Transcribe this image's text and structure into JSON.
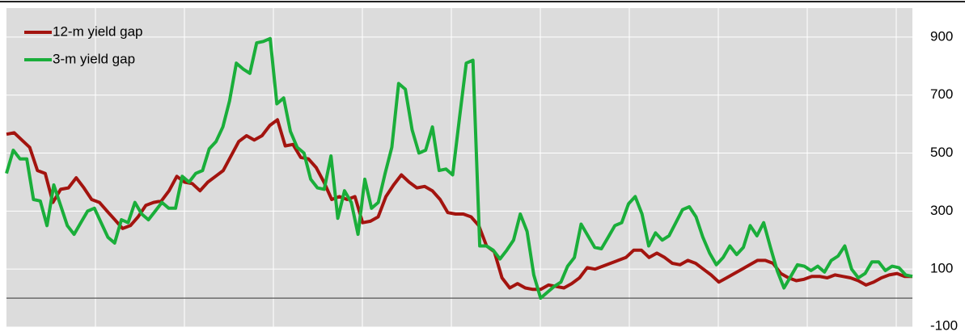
{
  "chart_data": {
    "type": "line",
    "ylim": [
      -100,
      1000
    ],
    "yticks": [
      -100,
      100,
      300,
      500,
      700,
      900
    ],
    "grid": true,
    "zero_line": true,
    "legend": "top-left",
    "series": [
      {
        "name": "12-m yield gap",
        "color": "#a3140f",
        "values": [
          565,
          570,
          545,
          520,
          440,
          430,
          330,
          375,
          380,
          415,
          380,
          340,
          330,
          300,
          270,
          240,
          250,
          280,
          320,
          330,
          335,
          370,
          420,
          400,
          395,
          370,
          400,
          420,
          440,
          490,
          540,
          560,
          545,
          560,
          595,
          615,
          525,
          530,
          485,
          480,
          450,
          400,
          340,
          350,
          340,
          350,
          260,
          265,
          280,
          350,
          390,
          425,
          400,
          380,
          385,
          370,
          340,
          295,
          290,
          290,
          280,
          250,
          180,
          160,
          70,
          35,
          50,
          35,
          30,
          30,
          45,
          40,
          35,
          50,
          70,
          105,
          100,
          110,
          120,
          130,
          140,
          165,
          165,
          140,
          155,
          140,
          120,
          115,
          130,
          120,
          100,
          80,
          55,
          70,
          85,
          100,
          115,
          130,
          130,
          120,
          85,
          70,
          60,
          65,
          75,
          75,
          70,
          80,
          75,
          70,
          60,
          45,
          55,
          70,
          80,
          85,
          75,
          75
        ]
      },
      {
        "name": "3-m yield gap",
        "color": "#1aae3a",
        "values": [
          430,
          510,
          480,
          480,
          340,
          335,
          250,
          390,
          320,
          250,
          220,
          260,
          300,
          310,
          260,
          210,
          190,
          270,
          260,
          330,
          290,
          270,
          300,
          330,
          310,
          310,
          420,
          400,
          430,
          440,
          515,
          540,
          590,
          680,
          810,
          790,
          775,
          880,
          885,
          895,
          670,
          690,
          575,
          520,
          500,
          410,
          380,
          375,
          490,
          275,
          370,
          330,
          220,
          410,
          310,
          330,
          430,
          520,
          740,
          720,
          580,
          500,
          510,
          590,
          440,
          445,
          425,
          620,
          810,
          820,
          180,
          180,
          165,
          135,
          165,
          200,
          290,
          230,
          80,
          0,
          20,
          40,
          55,
          110,
          140,
          255,
          215,
          175,
          170,
          210,
          250,
          260,
          325,
          350,
          290,
          180,
          225,
          200,
          215,
          260,
          305,
          315,
          280,
          210,
          155,
          115,
          140,
          180,
          150,
          175,
          250,
          215,
          260,
          175,
          95,
          35,
          75,
          115,
          110,
          95,
          110,
          90,
          130,
          145,
          180,
          100,
          70,
          85,
          125,
          125,
          95,
          110,
          105,
          80,
          75
        ]
      }
    ]
  }
}
